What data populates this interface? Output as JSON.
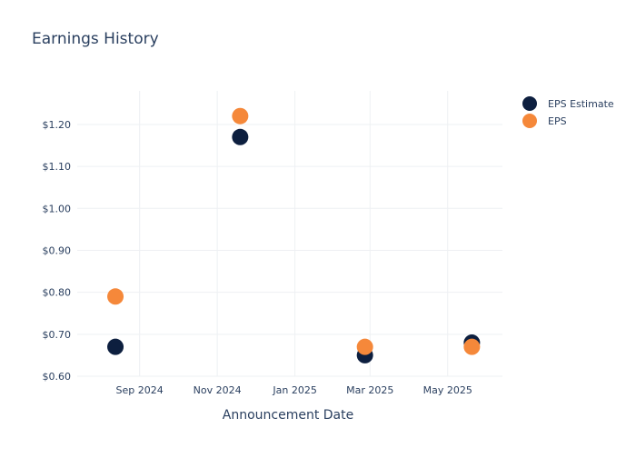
{
  "chart_data": {
    "type": "scatter",
    "title": "Earnings History",
    "xlabel": "Announcement Date",
    "ylabel": "",
    "x_ticks": [
      "Sep 2024",
      "Nov 2024",
      "Jan 2025",
      "Mar 2025",
      "May 2025"
    ],
    "y_ticks": [
      "$0.60",
      "$0.70",
      "$0.80",
      "$0.90",
      "$1.00",
      "$1.10",
      "$1.20"
    ],
    "ylim": [
      0.6,
      1.2
    ],
    "grid": true,
    "legend_position": "top-right",
    "series": [
      {
        "name": "EPS Estimate",
        "color": "#0d1f3f",
        "points": [
          {
            "x": "2024-08-13",
            "y": 0.67
          },
          {
            "x": "2024-11-19",
            "y": 1.17
          },
          {
            "x": "2025-02-25",
            "y": 0.65
          },
          {
            "x": "2025-05-20",
            "y": 0.68
          }
        ]
      },
      {
        "name": "EPS",
        "color": "#f5883a",
        "points": [
          {
            "x": "2024-08-13",
            "y": 0.79
          },
          {
            "x": "2024-11-19",
            "y": 1.22
          },
          {
            "x": "2025-02-25",
            "y": 0.67
          },
          {
            "x": "2025-05-20",
            "y": 0.67
          }
        ]
      }
    ]
  }
}
